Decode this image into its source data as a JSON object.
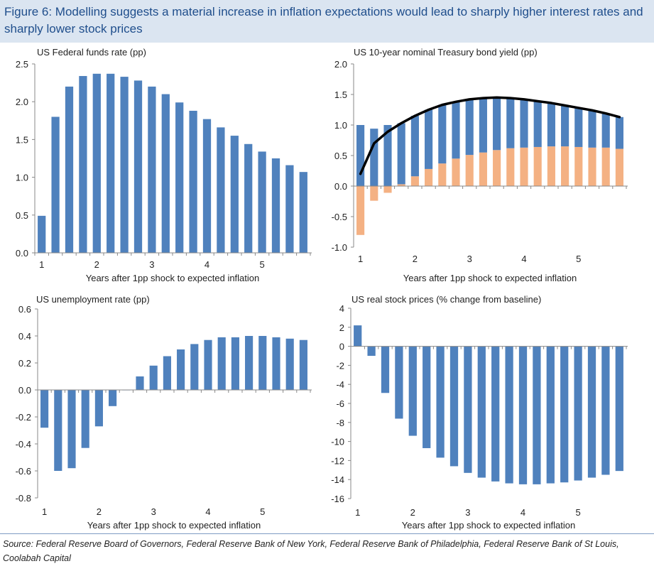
{
  "figure": {
    "title": "Figure 6: Modelling suggests a material increase in inflation expectations would lead to sharply higher interest rates and sharply lower stock prices",
    "source": "Source: Federal Reserve Board of Governors, Federal Reserve Bank of New York, Federal Reserve Bank of Philadelphia, Federal Reserve Bank of St Louis, Coolabah Capital"
  },
  "colors": {
    "blue": "#4f81bd",
    "orange": "#f4b183",
    "line": "#000000",
    "title_band": "#dbe5f1",
    "title_text": "#1f4e8c"
  },
  "chart_data": [
    {
      "type": "bar",
      "title": "US Federal funds rate (pp)",
      "xlabel": "Years after 1pp shock to expected inflation",
      "x_tick_labels": [
        "1",
        "2",
        "3",
        "4",
        "5"
      ],
      "y_tick_labels": [
        "0.0",
        "0.5",
        "1.0",
        "1.5",
        "2.0",
        "2.5"
      ],
      "ylim": [
        0,
        2.5
      ],
      "ystep": 0.5,
      "values": [
        0.49,
        1.8,
        2.2,
        2.34,
        2.37,
        2.37,
        2.33,
        2.28,
        2.2,
        2.1,
        1.99,
        1.88,
        1.77,
        1.66,
        1.55,
        1.44,
        1.34,
        1.25,
        1.16,
        1.07
      ]
    },
    {
      "type": "bar",
      "stacked": true,
      "title": "US 10-year nominal Treasury bond yield (pp)",
      "xlabel": "Years after 1pp shock to expected inflation",
      "x_tick_labels": [
        "1",
        "2",
        "3",
        "4",
        "5"
      ],
      "y_tick_labels": [
        "-1.0",
        "-0.5",
        "0.0",
        "0.5",
        "1.0",
        "1.5",
        "2.0"
      ],
      "ylim": [
        -1.0,
        2.0
      ],
      "ystep": 0.5,
      "series": [
        {
          "color": "blue",
          "values": [
            1.0,
            0.94,
            1.0,
            1.0,
            0.99,
            0.97,
            0.96,
            0.93,
            0.91,
            0.89,
            0.86,
            0.82,
            0.79,
            0.75,
            0.71,
            0.67,
            0.64,
            0.61,
            0.56,
            0.52
          ]
        },
        {
          "color": "orange",
          "values": [
            -0.8,
            -0.24,
            -0.11,
            0.03,
            0.16,
            0.28,
            0.37,
            0.45,
            0.51,
            0.55,
            0.59,
            0.62,
            0.63,
            0.64,
            0.65,
            0.65,
            0.64,
            0.63,
            0.63,
            0.61
          ]
        }
      ],
      "line": {
        "color": "line",
        "values": [
          0.2,
          0.7,
          0.89,
          1.03,
          1.15,
          1.25,
          1.33,
          1.38,
          1.42,
          1.44,
          1.45,
          1.44,
          1.42,
          1.39,
          1.36,
          1.32,
          1.28,
          1.24,
          1.19,
          1.13
        ]
      }
    },
    {
      "type": "bar",
      "title": "US unemployment rate (pp)",
      "xlabel": "Years after 1pp shock to expected inflation",
      "x_tick_labels": [
        "1",
        "2",
        "3",
        "4",
        "5"
      ],
      "y_tick_labels": [
        "-0.8",
        "-0.6",
        "-0.4",
        "-0.2",
        "0.0",
        "0.2",
        "0.4",
        "0.6"
      ],
      "ylim": [
        -0.8,
        0.6
      ],
      "ystep": 0.2,
      "values": [
        -0.28,
        -0.6,
        -0.58,
        -0.43,
        -0.27,
        -0.12,
        0.0,
        0.1,
        0.18,
        0.25,
        0.3,
        0.34,
        0.37,
        0.39,
        0.39,
        0.4,
        0.4,
        0.39,
        0.38,
        0.37
      ]
    },
    {
      "type": "bar",
      "title": "US real stock prices (% change from baseline)",
      "xlabel": "Years after 1pp shock to expected inflation",
      "x_tick_labels": [
        "1",
        "2",
        "3",
        "4",
        "5"
      ],
      "y_tick_labels": [
        "-16",
        "-14",
        "-12",
        "-10",
        "-8",
        "-6",
        "-4",
        "-2",
        "0",
        "2",
        "4"
      ],
      "ylim": [
        -16,
        4
      ],
      "ystep": 2,
      "values": [
        2.2,
        -1.0,
        -4.9,
        -7.6,
        -9.4,
        -10.7,
        -11.7,
        -12.6,
        -13.3,
        -13.8,
        -14.2,
        -14.4,
        -14.5,
        -14.5,
        -14.4,
        -14.3,
        -14.1,
        -13.8,
        -13.5,
        -13.1
      ]
    }
  ]
}
